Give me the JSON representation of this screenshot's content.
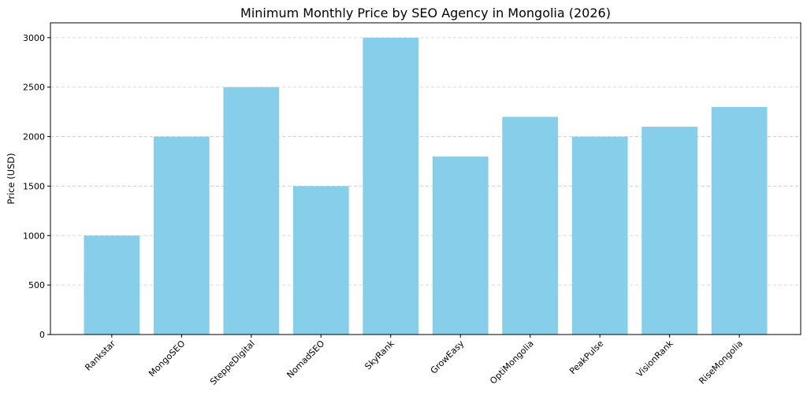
{
  "chart_data": {
    "type": "bar",
    "title": "Minimum Monthly Price by SEO Agency in Mongolia (2026)",
    "xlabel": "",
    "ylabel": "Price (USD)",
    "categories": [
      "Rankstar",
      "MongoSEO",
      "SteppeDigital",
      "NomadSEO",
      "SkyRank",
      "GrowEasy",
      "OptiMongolia",
      "PeakPulse",
      "VisionRank",
      "RiseMongolia"
    ],
    "values": [
      1000,
      2000,
      2500,
      1500,
      3000,
      1800,
      2200,
      2000,
      2100,
      2300
    ],
    "ylim": [
      0,
      3150
    ],
    "yticks": [
      0,
      500,
      1000,
      1500,
      2000,
      2500,
      3000
    ],
    "grid": "y, dashed",
    "bar_color": "#87CEEB"
  }
}
